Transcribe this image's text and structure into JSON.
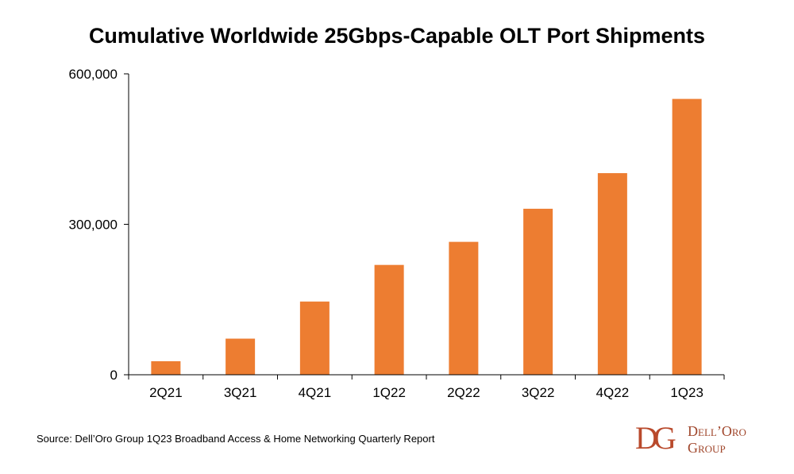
{
  "chart_data": {
    "type": "bar",
    "title": "Cumulative Worldwide 25Gbps-Capable OLT Port Shipments",
    "categories": [
      "2Q21",
      "3Q21",
      "4Q21",
      "1Q22",
      "2Q22",
      "3Q22",
      "4Q22",
      "1Q23"
    ],
    "values": [
      27000,
      72000,
      146000,
      219000,
      265000,
      331000,
      402000,
      550000
    ],
    "ylim": [
      0,
      600000
    ],
    "yticks": [
      0,
      300000,
      600000
    ],
    "ytick_labels": [
      "0",
      "300,000",
      "600,000"
    ],
    "xlabel": "",
    "ylabel": "",
    "grid": false,
    "bar_color": "#ed7d31"
  },
  "footer": {
    "source": "Source: Dell’Oro Group 1Q23 Broadband Access & Home Networking Quarterly Report"
  },
  "logo": {
    "mark": "DG",
    "line1": "Dell’Oro",
    "line2": "Group"
  }
}
